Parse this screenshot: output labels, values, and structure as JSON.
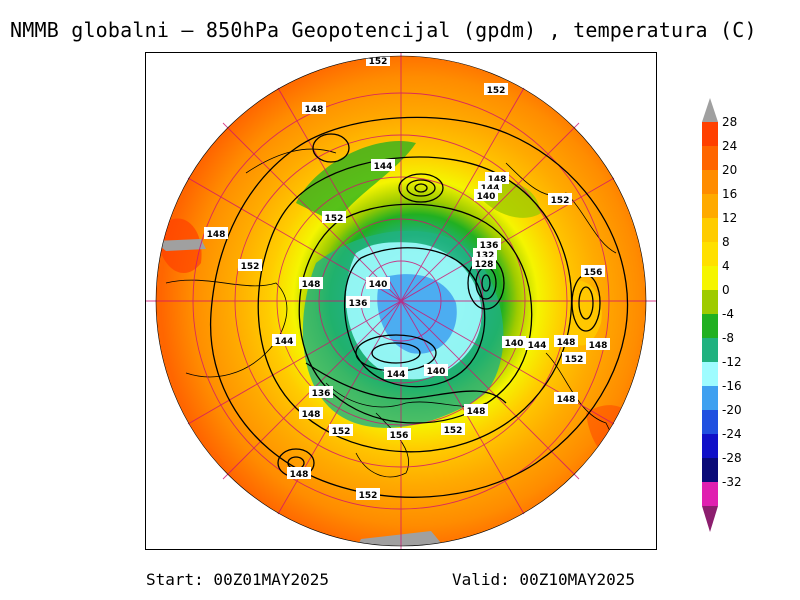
{
  "title": "NMMB globalni – 850hPa Geopotencijal (gpdm) , temperatura (C)",
  "footer": {
    "start": "Start: 00Z01MAY2025",
    "valid": "Valid: 00Z10MAY2025"
  },
  "colorbar": {
    "labels": [
      "28",
      "24",
      "20",
      "16",
      "12",
      "8",
      "4",
      "0",
      "-4",
      "-8",
      "-12",
      "-16",
      "-20",
      "-24",
      "-28",
      "-32"
    ],
    "colors": [
      "#ff4000",
      "#ff6600",
      "#ff8c00",
      "#ffaa00",
      "#ffcc00",
      "#ffe000",
      "#f5f500",
      "#9ecb00",
      "#21b021",
      "#20b27f",
      "#9ffcff",
      "#3fa0f0",
      "#2050e0",
      "#1010c8",
      "#0a0a78",
      "#e020b0"
    ],
    "arrow_top_color": "#a0a0a0",
    "arrow_bottom_color": "#8c1e6e"
  },
  "contour_labels": [
    "152",
    "148",
    "152",
    "144",
    "148",
    "144",
    "140",
    "152",
    "152",
    "148",
    "152",
    "148",
    "140",
    "136",
    "132",
    "128",
    "156",
    "136",
    "144",
    "140",
    "144",
    "148",
    "148",
    "152",
    "136",
    "144",
    "140",
    "148",
    "148",
    "152",
    "156",
    "152",
    "148",
    "152",
    "148"
  ]
}
